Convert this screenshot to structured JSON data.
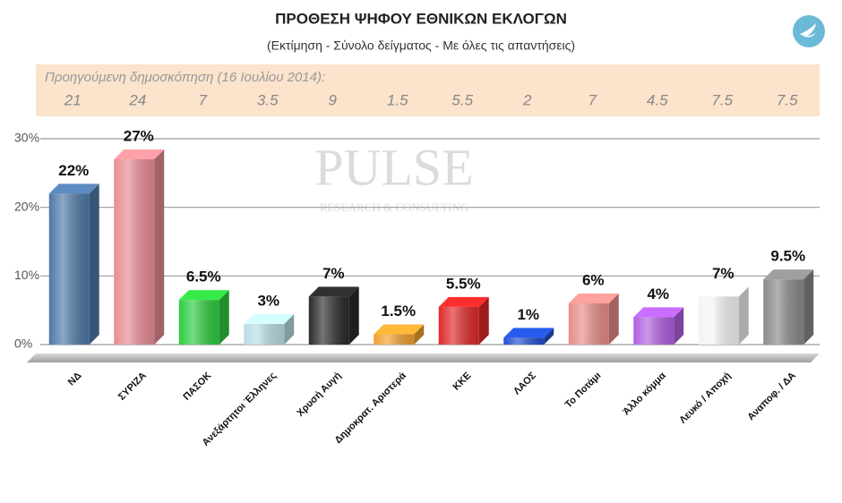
{
  "chart_data": {
    "type": "bar3d",
    "title": "ΠΡΟΘΕΣΗ ΨΗΦΟΥ ΕΘΝΙΚΩΝ ΕΚΛΟΓΩΝ",
    "subtitle": "(Εκτίμηση - Σύνολο δείγματος - Με όλες τις απαντήσεις)",
    "categories": [
      "ΝΔ",
      "ΣΥΡΙΖΑ",
      "ΠΑΣΟΚ",
      "Ανεξάρτητοι Έλληνες",
      "Χρυσή Αυγή",
      "Δημοκρατ. Αριστερά",
      "ΚΚΕ",
      "ΛΑΟΣ",
      "Το Ποτάμι",
      "Άλλο κόμμα",
      "Λευκό / Αποχή",
      "Αναποφ. / ΔΑ"
    ],
    "values": [
      22,
      27,
      6.5,
      3,
      7,
      1.5,
      5.5,
      1,
      6,
      4,
      7,
      9.5
    ],
    "value_labels": [
      "22%",
      "27%",
      "6.5%",
      "3%",
      "7%",
      "1.5%",
      "5.5%",
      "1%",
      "6%",
      "4%",
      "7%",
      "9.5%"
    ],
    "colors": [
      "#4f79a8",
      "#e88c94",
      "#2ecc40",
      "#b8dde4",
      "#2b2b2b",
      "#f0a030",
      "#e02828",
      "#2250d0",
      "#e88c88",
      "#b060e0",
      "#f4f4f4",
      "#8a8a8a"
    ],
    "ylim": [
      0,
      30
    ],
    "yticks": [
      {
        "value": 0,
        "label": "0%"
      },
      {
        "value": 10,
        "label": "10%"
      },
      {
        "value": 20,
        "label": "20%"
      },
      {
        "value": 30,
        "label": "30%"
      }
    ],
    "grid": true,
    "previous_poll": {
      "label": "Προηγούμενη δημοσκόπηση  (16 Ιουλίου 2014):",
      "values": [
        21,
        24,
        7,
        3.5,
        9,
        1.5,
        5.5,
        2,
        7,
        4.5,
        7.5,
        7.5
      ]
    },
    "watermark": {
      "name": "PULSE",
      "tagline": "RESEARCH & CONSULTING"
    }
  }
}
